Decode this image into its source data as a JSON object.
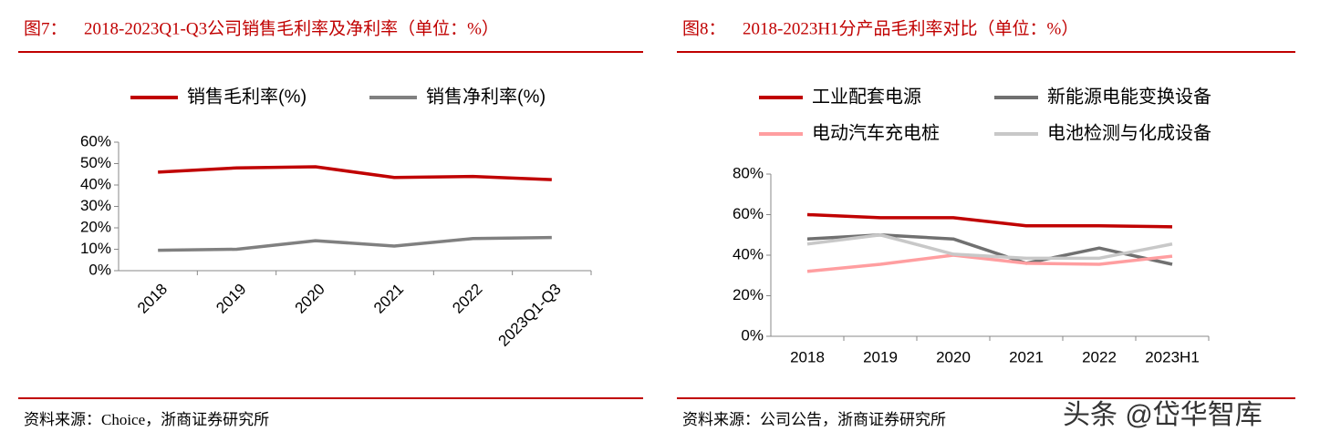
{
  "chart_data": [
    {
      "type": "line",
      "figure_label": "图7：",
      "title": "2018-2023Q1-Q3公司销售毛利率及净利率（单位：%）",
      "categories": [
        "2018",
        "2019",
        "2020",
        "2021",
        "2022",
        "2023Q1-Q3"
      ],
      "series": [
        {
          "name": "销售毛利率(%)",
          "color": "#c00000",
          "values": [
            46,
            48,
            48.5,
            43.5,
            44,
            42.5
          ]
        },
        {
          "name": "销售净利率(%)",
          "color": "#808080",
          "values": [
            9.5,
            10,
            14,
            11.5,
            15,
            15.5
          ]
        }
      ],
      "ylim": [
        0,
        60
      ],
      "yticks": [
        {
          "value": 0,
          "label": "0%"
        },
        {
          "value": 10,
          "label": "10%"
        },
        {
          "value": 20,
          "label": "20%"
        },
        {
          "value": 30,
          "label": "30%"
        },
        {
          "value": 40,
          "label": "40%"
        },
        {
          "value": 50,
          "label": "50%"
        },
        {
          "value": 60,
          "label": "60%"
        }
      ],
      "source": "资料来源：Choice，浙商证券研究所"
    },
    {
      "type": "line",
      "figure_label": "图8：",
      "title": "2018-2023H1分产品毛利率对比（单位：%）",
      "categories": [
        "2018",
        "2019",
        "2020",
        "2021",
        "2022",
        "2023H1"
      ],
      "series": [
        {
          "name": "工业配套电源",
          "color": "#c00000",
          "values": [
            60,
            58.5,
            58.5,
            54.5,
            54.5,
            54
          ]
        },
        {
          "name": "新能源电能变换设备",
          "color": "#707070",
          "values": [
            48,
            50,
            48,
            36,
            43.5,
            35.5
          ]
        },
        {
          "name": "电动汽车充电桩",
          "color": "#ff9ea0",
          "values": [
            32,
            35.5,
            40,
            36,
            35.5,
            39.5
          ]
        },
        {
          "name": "电池检测与化成设备",
          "color": "#c8c8c8",
          "values": [
            45.5,
            50,
            40.5,
            38.5,
            38.5,
            45.5
          ]
        }
      ],
      "ylim": [
        0,
        80
      ],
      "yticks": [
        {
          "value": 0,
          "label": "0%"
        },
        {
          "value": 20,
          "label": "20%"
        },
        {
          "value": 40,
          "label": "40%"
        },
        {
          "value": 60,
          "label": "60%"
        },
        {
          "value": 80,
          "label": "80%"
        }
      ],
      "source": "资料来源：公司公告，浙商证券研究所"
    }
  ],
  "watermark": "头条 @岱华智库"
}
